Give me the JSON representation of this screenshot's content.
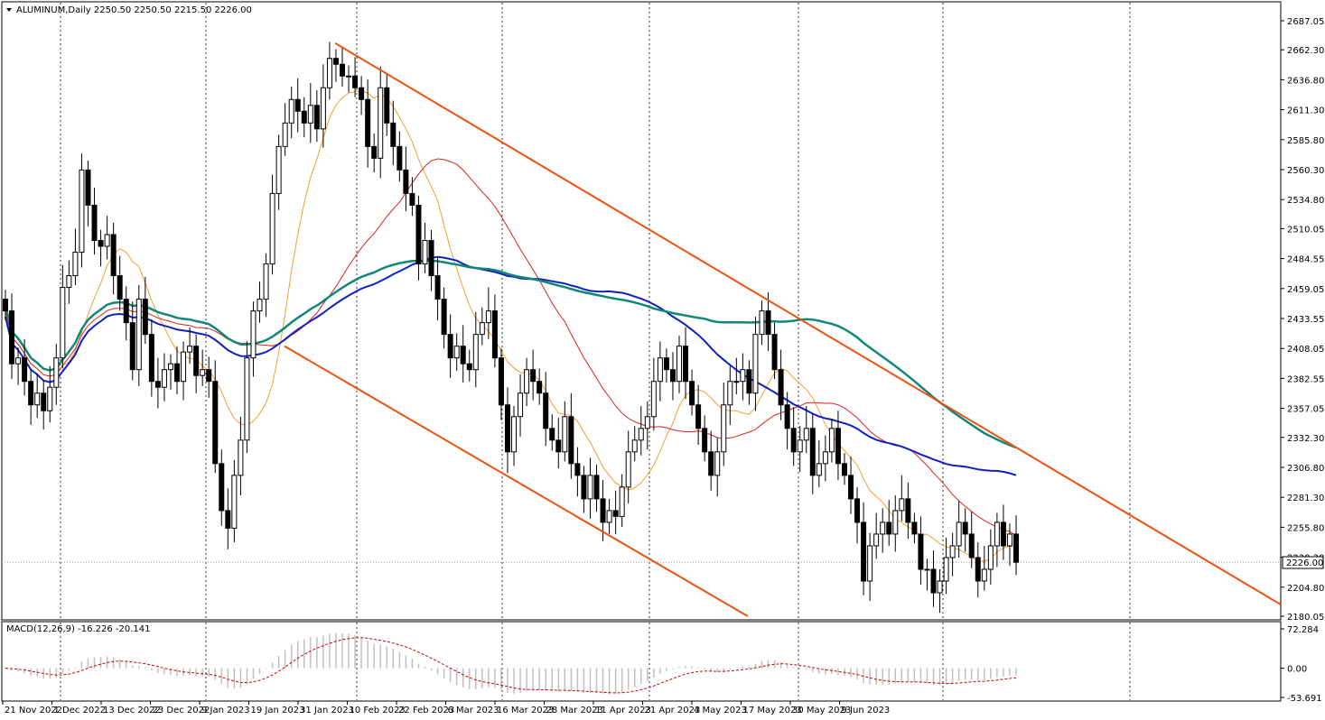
{
  "header": {
    "symbol_line": "ALUMINUM,Daily  2250.50 2250.50 2215.50 2226.00",
    "macd_line": "MACD(12,26,9) -16.226 -20.141"
  },
  "current_price_label": "2226.00",
  "colors": {
    "bull_body": "#ffffff",
    "bear_body": "#000000",
    "ma_fast": "#f0a030",
    "ma_mid": "#dd2222",
    "ma_green": "#118877",
    "ma_blue": "#1020c0",
    "channel": "#f05010",
    "macd_hist": "#c0c0c0",
    "macd_signal": "#cc0000",
    "grid": "#c8c8c8"
  },
  "chart_data": [
    {
      "type": "candlestick",
      "title": "ALUMINUM,Daily",
      "y_ticks": [
        "2687.05",
        "2662.30",
        "2636.80",
        "2611.30",
        "2585.80",
        "2560.30",
        "2534.80",
        "2510.05",
        "2484.55",
        "2459.05",
        "2433.55",
        "2408.05",
        "2382.55",
        "2357.05",
        "2332.30",
        "2306.80",
        "2281.30",
        "2255.80",
        "2230.30",
        "2204.80",
        "2180.05"
      ],
      "ylim": [
        2180.05,
        2687.05
      ],
      "x_labels": [
        "21 Nov 2022",
        "1 Dec 2022",
        "13 Dec 2022",
        "23 Dec 2022",
        "9 Jan 2023",
        "19 Jan 2023",
        "31 Jan 2023",
        "10 Feb 2023",
        "22 Feb 2023",
        "6 Mar 2023",
        "16 Mar 2023",
        "28 Mar 2023",
        "11 Apr 2023",
        "21 Apr 2023",
        "4 May 2023",
        "17 May 2023",
        "30 May 2023",
        "9 Jun 2023"
      ],
      "close_last": 2226.0,
      "ohlc_close": [
        2440,
        2395,
        2400,
        2380,
        2360,
        2370,
        2355,
        2375,
        2400,
        2460,
        2470,
        2490,
        2560,
        2530,
        2500,
        2495,
        2505,
        2470,
        2450,
        2430,
        2390,
        2450,
        2420,
        2380,
        2375,
        2390,
        2395,
        2380,
        2405,
        2410,
        2385,
        2390,
        2380,
        2310,
        2270,
        2255,
        2300,
        2330,
        2400,
        2440,
        2450,
        2480,
        2540,
        2580,
        2600,
        2620,
        2610,
        2600,
        2615,
        2595,
        2630,
        2655,
        2650,
        2640,
        2640,
        2630,
        2620,
        2580,
        2570,
        2630,
        2600,
        2580,
        2560,
        2540,
        2530,
        2480,
        2500,
        2470,
        2450,
        2420,
        2400,
        2410,
        2395,
        2390,
        2420,
        2430,
        2440,
        2400,
        2360,
        2320,
        2350,
        2370,
        2390,
        2380,
        2370,
        2340,
        2330,
        2320,
        2350,
        2310,
        2300,
        2280,
        2300,
        2280,
        2260,
        2270,
        2265,
        2290,
        2320,
        2330,
        2340,
        2350,
        2380,
        2400,
        2390,
        2380,
        2410,
        2380,
        2360,
        2340,
        2320,
        2300,
        2320,
        2360,
        2380,
        2380,
        2390,
        2370,
        2420,
        2440,
        2420,
        2390,
        2360,
        2340,
        2320,
        2330,
        2340,
        2300,
        2310,
        2320,
        2340,
        2310,
        2300,
        2280,
        2260,
        2210,
        2240,
        2250,
        2260,
        2250,
        2270,
        2280,
        2260,
        2250,
        2220,
        2220,
        2200,
        2210,
        2230,
        2240,
        2260,
        2250,
        2230,
        2210,
        2220,
        2240,
        2260,
        2240,
        2250,
        2226
      ],
      "macd_ylim": [
        -53.691,
        72.284
      ],
      "macd_ticks": [
        "72.284",
        "0.00",
        "-53.691"
      ],
      "macd_value": -16.226,
      "macd_signal_value": -20.141
    }
  ]
}
